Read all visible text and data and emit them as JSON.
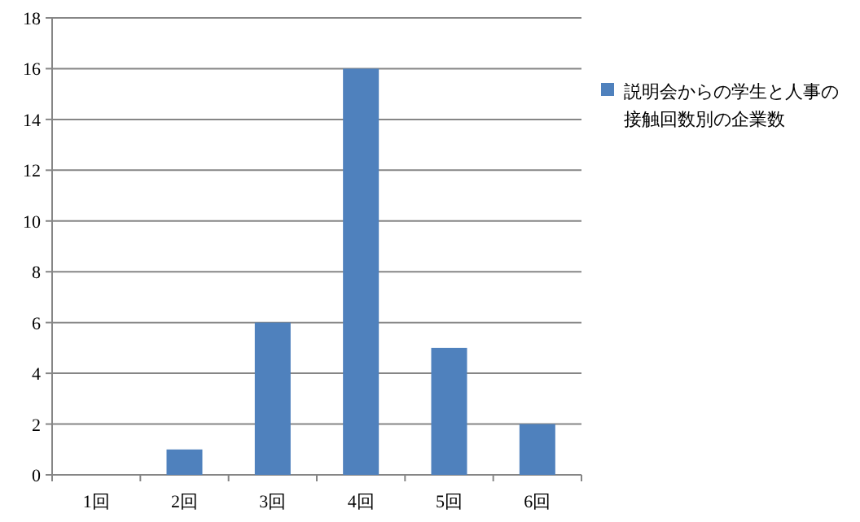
{
  "chart_data": {
    "type": "bar",
    "categories": [
      "1回",
      "2回",
      "3回",
      "4回",
      "5回",
      "6回"
    ],
    "series": [
      {
        "name": "説明会からの学生と人事の接触回数別の企業数",
        "color": "#4f81bd",
        "values": [
          0,
          1,
          6,
          16,
          5,
          2
        ]
      }
    ],
    "ylim": [
      0,
      18
    ],
    "yticks": [
      0,
      2,
      4,
      6,
      8,
      10,
      12,
      14,
      16,
      18
    ],
    "grid": "y",
    "legend": "right"
  }
}
